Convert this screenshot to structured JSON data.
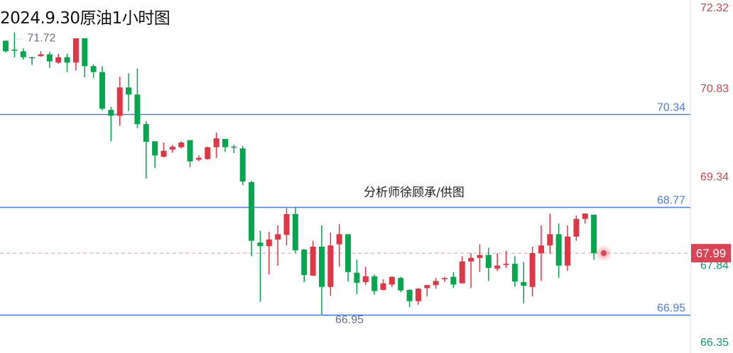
{
  "title": "2024.9.30原油1小时图",
  "watermark_text": "分析师徐顾承/供图",
  "chart_data": {
    "type": "candlestick",
    "title": "2024.9.30原油1小时图",
    "ylim": [
      66.3,
      72.35
    ],
    "y_tick_labels": [
      "72.32",
      "70.83",
      "69.34",
      "67.84",
      "66.35"
    ],
    "y_ticks": [
      72.32,
      70.83,
      69.34,
      67.84,
      66.35
    ],
    "grid": false,
    "colors": {
      "up": "#e03646",
      "down": "#08a550",
      "hline": "#4b7bf5",
      "last_price": "#dc4455",
      "axis_up_text": "#d9434f",
      "axis_down_text": "#0a9e74",
      "marker_text": "#6b7080"
    },
    "horizontal_lines": [
      {
        "value": 70.34,
        "label": "70.34"
      },
      {
        "value": 68.77,
        "label": "68.77"
      },
      {
        "value": 66.95,
        "label": "66.95"
      }
    ],
    "last_price": {
      "value": 67.99,
      "label": "67.99"
    },
    "high_marker": {
      "value": 71.72,
      "label": "71.72",
      "index": 1
    },
    "low_marker": {
      "value": 66.95,
      "label": "66.95",
      "index": 36
    },
    "ohlc_fields": [
      "open",
      "high",
      "low",
      "close"
    ],
    "candles": [
      [
        71.58,
        71.58,
        71.38,
        71.4
      ],
      [
        71.43,
        71.72,
        71.3,
        71.41
      ],
      [
        71.4,
        71.45,
        71.26,
        71.3
      ],
      [
        71.3,
        71.31,
        71.17,
        71.29
      ],
      [
        71.32,
        71.4,
        71.31,
        71.35
      ],
      [
        71.35,
        71.39,
        71.12,
        71.23
      ],
      [
        71.21,
        71.36,
        71.19,
        71.3
      ],
      [
        71.3,
        71.36,
        71.05,
        71.21
      ],
      [
        71.21,
        71.62,
        71.08,
        71.62
      ],
      [
        71.62,
        71.62,
        70.96,
        71.15
      ],
      [
        71.15,
        71.18,
        70.95,
        71.05
      ],
      [
        71.05,
        71.15,
        70.4,
        70.43
      ],
      [
        70.41,
        70.46,
        69.88,
        70.31
      ],
      [
        70.31,
        70.97,
        70.14,
        70.79
      ],
      [
        70.79,
        71.03,
        70.39,
        70.67
      ],
      [
        70.67,
        71.11,
        70.1,
        70.17
      ],
      [
        70.17,
        70.22,
        69.25,
        69.87
      ],
      [
        69.88,
        69.88,
        69.43,
        69.64
      ],
      [
        69.62,
        69.86,
        69.61,
        69.72
      ],
      [
        69.74,
        69.82,
        69.69,
        69.79
      ],
      [
        69.78,
        69.88,
        69.76,
        69.86
      ],
      [
        69.9,
        69.9,
        69.44,
        69.54
      ],
      [
        69.57,
        69.64,
        69.54,
        69.6
      ],
      [
        69.58,
        69.79,
        69.57,
        69.78
      ],
      [
        69.78,
        70.03,
        69.6,
        69.93
      ],
      [
        69.92,
        69.92,
        69.7,
        69.78
      ],
      [
        69.79,
        69.82,
        69.68,
        69.78
      ],
      [
        69.76,
        69.8,
        69.14,
        69.2
      ],
      [
        69.19,
        69.21,
        67.94,
        68.2
      ],
      [
        68.17,
        68.37,
        67.17,
        68.11
      ],
      [
        68.11,
        68.35,
        67.63,
        68.22
      ],
      [
        68.22,
        68.46,
        67.78,
        68.31
      ],
      [
        68.3,
        68.75,
        68.12,
        68.65
      ],
      [
        68.65,
        68.76,
        67.99,
        68.04
      ],
      [
        68.05,
        68.06,
        67.5,
        67.62
      ],
      [
        67.61,
        68.2,
        67.61,
        68.1
      ],
      [
        68.1,
        68.46,
        66.95,
        67.42
      ],
      [
        67.42,
        68.34,
        67.27,
        68.12
      ],
      [
        68.14,
        68.48,
        67.76,
        68.31
      ],
      [
        68.31,
        68.31,
        67.51,
        67.67
      ],
      [
        67.66,
        67.88,
        67.3,
        67.49
      ],
      [
        67.5,
        67.76,
        67.46,
        67.6
      ],
      [
        67.6,
        67.63,
        67.29,
        67.35
      ],
      [
        67.37,
        67.55,
        67.36,
        67.48
      ],
      [
        67.46,
        67.6,
        67.42,
        67.59
      ],
      [
        67.57,
        67.59,
        67.33,
        67.36
      ],
      [
        67.37,
        67.38,
        67.08,
        67.18
      ],
      [
        67.18,
        67.4,
        67.12,
        67.39
      ],
      [
        67.4,
        67.45,
        67.26,
        67.45
      ],
      [
        67.45,
        67.57,
        67.39,
        67.52
      ],
      [
        67.55,
        67.59,
        67.5,
        67.57
      ],
      [
        67.59,
        67.67,
        67.4,
        67.46
      ],
      [
        67.48,
        67.94,
        67.48,
        67.85
      ],
      [
        67.85,
        67.99,
        67.4,
        67.91
      ],
      [
        67.91,
        68.14,
        67.67,
        67.96
      ],
      [
        67.96,
        68.08,
        67.52,
        67.74
      ],
      [
        67.73,
        67.99,
        67.69,
        67.78
      ],
      [
        67.79,
        68.03,
        67.74,
        67.81
      ],
      [
        67.81,
        67.94,
        67.42,
        67.51
      ],
      [
        67.5,
        67.84,
        67.14,
        67.44
      ],
      [
        67.42,
        68.1,
        67.26,
        67.99
      ],
      [
        67.99,
        68.46,
        67.52,
        68.12
      ],
      [
        68.12,
        68.66,
        67.98,
        68.31
      ],
      [
        68.31,
        68.49,
        67.57,
        67.78
      ],
      [
        67.78,
        68.46,
        67.69,
        68.27
      ],
      [
        68.27,
        68.63,
        68.2,
        68.57
      ],
      [
        68.57,
        68.66,
        68.49,
        68.66
      ],
      [
        68.64,
        68.64,
        67.88,
        67.99
      ]
    ]
  }
}
